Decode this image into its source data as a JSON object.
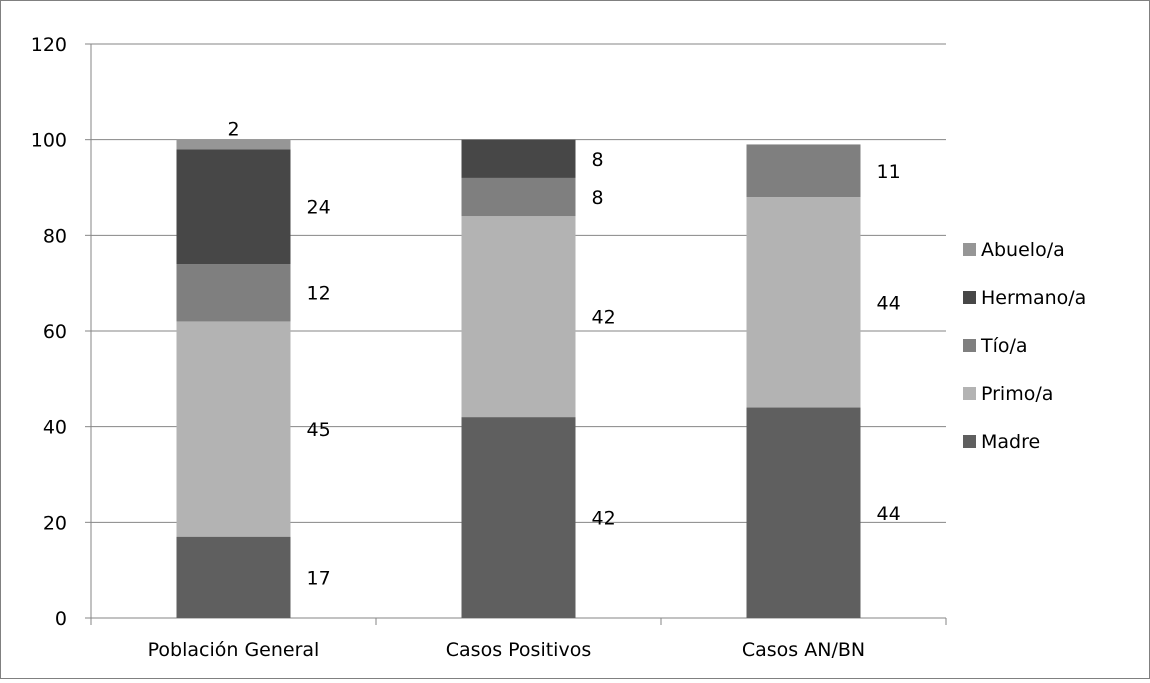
{
  "chart_data": {
    "type": "bar",
    "stacked": true,
    "categories": [
      "Población General",
      "Casos Positivos",
      "Casos AN/BN"
    ],
    "series": [
      {
        "name": "Madre",
        "values": [
          17,
          42,
          44
        ],
        "color": "#5f5f5f"
      },
      {
        "name": "Primo/a",
        "values": [
          45,
          42,
          44
        ],
        "color": "#b3b3b3"
      },
      {
        "name": "Tío/a",
        "values": [
          12,
          8,
          11
        ],
        "color": "#7f7f7f"
      },
      {
        "name": "Hermano/a",
        "values": [
          24,
          8,
          0
        ],
        "color": "#474747"
      },
      {
        "name": "Abuelo/a",
        "values": [
          2,
          0,
          0
        ],
        "color": "#969696"
      }
    ],
    "data_labels": [
      [
        "17",
        "45",
        "12",
        "24",
        "2"
      ],
      [
        "42",
        "42",
        "8",
        "8",
        ""
      ],
      [
        "44",
        "44",
        "11",
        "",
        ""
      ]
    ],
    "ylim": [
      0,
      120
    ],
    "yticks": [
      0,
      20,
      40,
      60,
      80,
      100,
      120
    ],
    "grid": true,
    "legend_position": "right",
    "legend_order": [
      "Abuelo/a",
      "Hermano/a",
      "Tío/a",
      "Primo/a",
      "Madre"
    ]
  }
}
